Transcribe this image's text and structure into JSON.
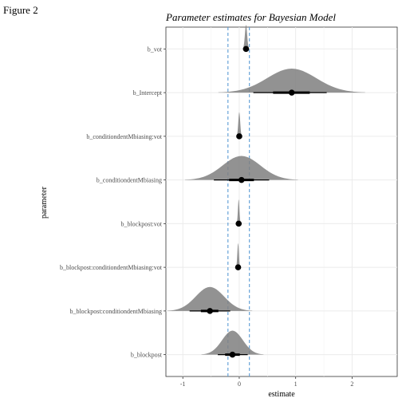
{
  "figure_label": "Figure 2",
  "chart_data": {
    "type": "interval",
    "title": "Parameter estimates for Bayesian Model",
    "xlabel": "estimate",
    "ylabel": "parameter",
    "xlim": [
      -1.3,
      2.8
    ],
    "xticks": [
      -1,
      0,
      1,
      2
    ],
    "xtick_labels": [
      "-1",
      "0",
      "1",
      "2"
    ],
    "grid": true,
    "reference_lines": [
      -0.2,
      0.18
    ],
    "reference_line_color": "#5b9bd5",
    "point_color": "#000000",
    "density_color": "#7f7f7f",
    "parameters": [
      {
        "name": "b_vot",
        "estimate": 0.12,
        "inner": [
          0.11,
          0.13
        ],
        "outer": [
          0.1,
          0.14
        ],
        "density_width": 0.06
      },
      {
        "name": "b_Intercept",
        "estimate": 0.93,
        "inner": [
          0.6,
          1.25
        ],
        "outer": [
          0.25,
          1.55
        ],
        "density_width": 1.3
      },
      {
        "name": "b_conditiondentMbiasing:vot",
        "estimate": 0.0,
        "inner": [
          -0.01,
          0.01
        ],
        "outer": [
          -0.02,
          0.02
        ],
        "density_width": 0.05
      },
      {
        "name": "b_conditiondentMbiasing",
        "estimate": 0.04,
        "inner": [
          -0.18,
          0.26
        ],
        "outer": [
          -0.45,
          0.53
        ],
        "density_width": 1.0
      },
      {
        "name": "b_blockpost:vot",
        "estimate": -0.01,
        "inner": [
          -0.02,
          0.0
        ],
        "outer": [
          -0.03,
          0.01
        ],
        "density_width": 0.04
      },
      {
        "name": "b_blockpost:conditiondentMbiasing:vot",
        "estimate": -0.02,
        "inner": [
          -0.03,
          -0.01
        ],
        "outer": [
          -0.04,
          0.0
        ],
        "density_width": 0.04
      },
      {
        "name": "b_blockpost:conditiondentMbiasing",
        "estimate": -0.52,
        "inner": [
          -0.68,
          -0.37
        ],
        "outer": [
          -0.88,
          -0.16
        ],
        "density_width": 0.75
      },
      {
        "name": "b_blockpost",
        "estimate": -0.12,
        "inner": [
          -0.25,
          0.01
        ],
        "outer": [
          -0.38,
          0.15
        ],
        "density_width": 0.55
      }
    ]
  }
}
